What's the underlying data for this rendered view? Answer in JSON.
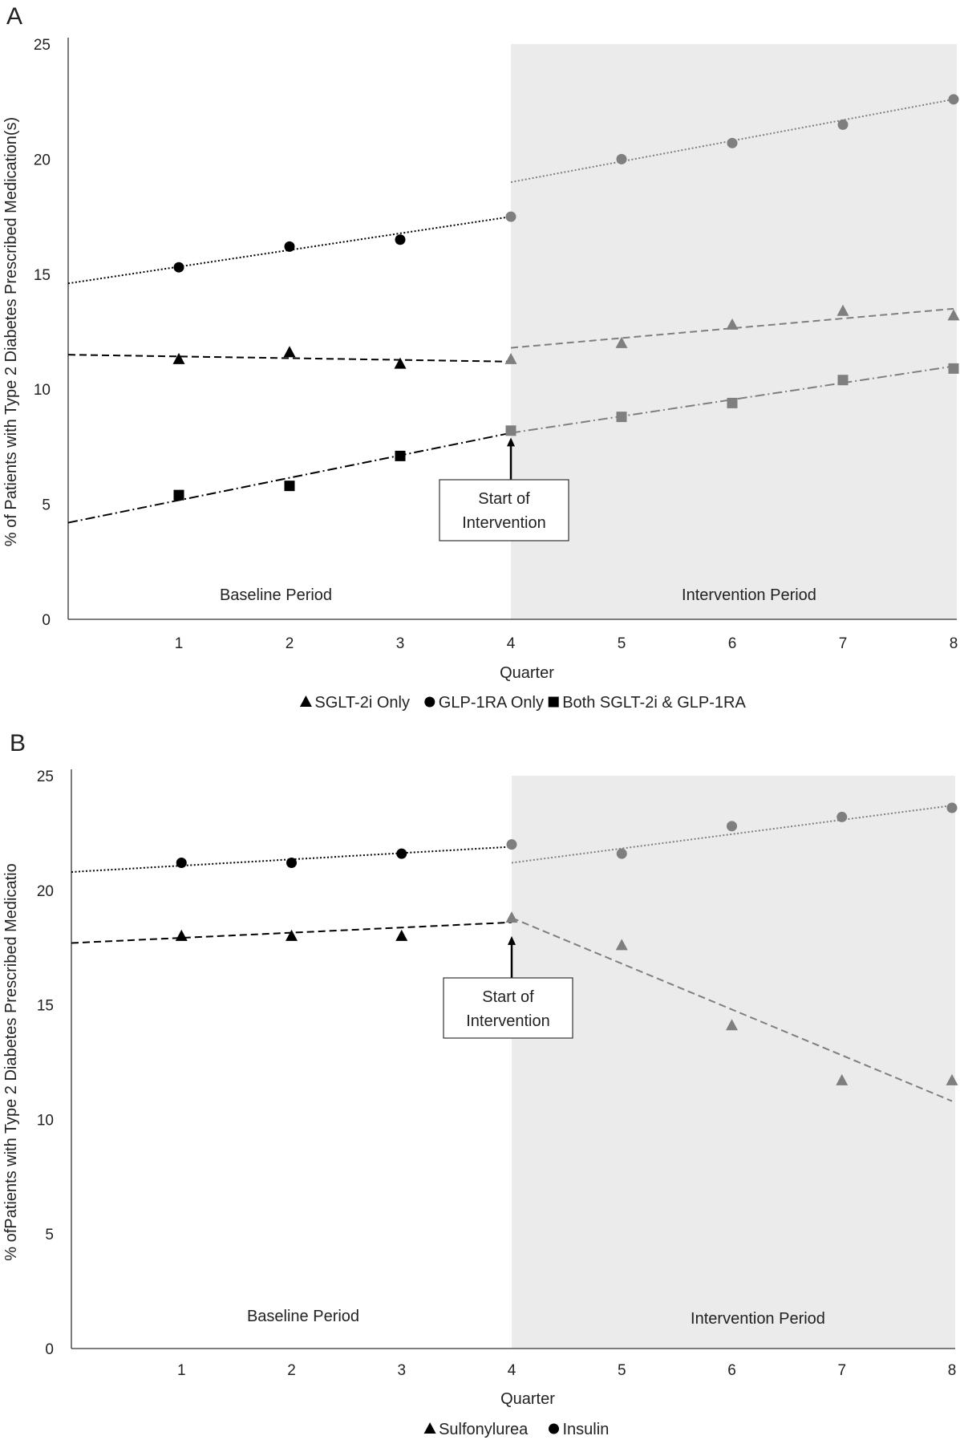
{
  "chart_data": [
    {
      "panel_label": "A",
      "type": "scatter",
      "xlabel": "Quarter",
      "ylabel": "% of Patients with Type 2 Diabetes Prescribed Medication(s)",
      "xlim": [
        0,
        8
      ],
      "ylim": [
        0,
        25
      ],
      "x_ticks": [
        "1",
        "2",
        "3",
        "4",
        "5",
        "6",
        "7",
        "8"
      ],
      "y_ticks": [
        "0",
        "5",
        "10",
        "15",
        "20",
        "25"
      ],
      "grid": false,
      "legend_position": "bottom",
      "shaded_region": {
        "from": 4,
        "to": 8,
        "color": "#ebebeb"
      },
      "period_labels": {
        "baseline": "Baseline Period",
        "intervention": "Intervention Period"
      },
      "annotation": {
        "line1": "Start of",
        "line2": "Intervention",
        "x": 4
      },
      "x": [
        1,
        2,
        3,
        4,
        5,
        6,
        7,
        8
      ],
      "series": [
        {
          "name": "SGLT-2i Only",
          "marker": "triangle",
          "line": "dashed",
          "values": [
            11.3,
            11.6,
            11.1,
            11.3,
            12.0,
            12.8,
            13.4,
            13.2
          ],
          "trend_baseline": [
            [
              0,
              11.5
            ],
            [
              4,
              11.2
            ]
          ],
          "trend_intervention": [
            [
              4,
              11.8
            ],
            [
              8,
              13.5
            ]
          ]
        },
        {
          "name": "GLP-1RA Only",
          "marker": "circle",
          "line": "dotted",
          "values": [
            15.3,
            16.2,
            16.5,
            17.5,
            20.0,
            20.7,
            21.5,
            22.6
          ],
          "trend_baseline": [
            [
              0,
              14.6
            ],
            [
              4,
              17.5
            ]
          ],
          "trend_intervention": [
            [
              4,
              19.0
            ],
            [
              8,
              22.6
            ]
          ]
        },
        {
          "name": "Both SGLT-2i & GLP-1RA",
          "marker": "square",
          "line": "dashdot",
          "values": [
            5.4,
            5.8,
            7.1,
            8.2,
            8.8,
            9.4,
            10.4,
            10.9
          ],
          "trend_baseline": [
            [
              0,
              4.2
            ],
            [
              4,
              8.1
            ]
          ],
          "trend_intervention": [
            [
              4,
              8.1
            ],
            [
              8,
              11.0
            ]
          ]
        }
      ],
      "colors": {
        "baseline": "#000000",
        "intervention": "#7f7f7f"
      }
    },
    {
      "panel_label": "B",
      "type": "scatter",
      "xlabel": "Quarter",
      "ylabel": "% ofPatients with Type 2 Diabetes Prescribed Medicatio",
      "xlim": [
        0,
        8
      ],
      "ylim": [
        0,
        25
      ],
      "x_ticks": [
        "1",
        "2",
        "3",
        "4",
        "5",
        "6",
        "7",
        "8"
      ],
      "y_ticks": [
        "0",
        "5",
        "10",
        "15",
        "20",
        "25"
      ],
      "grid": false,
      "legend_position": "bottom",
      "shaded_region": {
        "from": 4,
        "to": 8,
        "color": "#ebebeb"
      },
      "period_labels": {
        "baseline": "Baseline Period",
        "intervention": "Intervention Period"
      },
      "annotation": {
        "line1": "Start of",
        "line2": "Intervention",
        "x": 4
      },
      "x": [
        1,
        2,
        3,
        4,
        5,
        6,
        7,
        8
      ],
      "series": [
        {
          "name": "Sulfonylurea",
          "marker": "triangle",
          "line": "dashed",
          "values": [
            18.0,
            18.0,
            18.0,
            18.8,
            17.6,
            14.1,
            11.7,
            11.7
          ],
          "trend_baseline": [
            [
              0,
              17.7
            ],
            [
              4,
              18.6
            ]
          ],
          "trend_intervention": [
            [
              4,
              18.8
            ],
            [
              8,
              10.8
            ]
          ]
        },
        {
          "name": "Insulin",
          "marker": "circle",
          "line": "dotted",
          "values": [
            21.2,
            21.2,
            21.6,
            22.0,
            21.6,
            22.8,
            23.2,
            23.6
          ],
          "trend_baseline": [
            [
              0,
              20.8
            ],
            [
              4,
              21.9
            ]
          ],
          "trend_intervention": [
            [
              4,
              21.2
            ],
            [
              8,
              23.7
            ]
          ]
        }
      ],
      "colors": {
        "baseline": "#000000",
        "intervention": "#7f7f7f"
      }
    }
  ]
}
